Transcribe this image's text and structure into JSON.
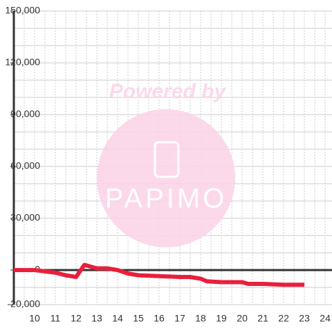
{
  "chart_data": {
    "type": "line",
    "watermark": {
      "top": "Powered by",
      "logo": "PAPIMO"
    },
    "x": [
      9,
      10,
      11,
      11.5,
      12,
      12.4,
      13,
      13.5,
      14,
      14.5,
      15,
      16,
      17,
      17.5,
      18,
      18.3,
      19,
      20,
      20.3,
      21,
      22,
      23
    ],
    "series": [
      {
        "color": "#e8203c",
        "values": [
          0,
          0,
          -1500,
          -3000,
          -4000,
          3000,
          1000,
          1000,
          0,
          -2000,
          -3000,
          -3500,
          -4000,
          -4000,
          -5000,
          -6500,
          -7000,
          -7000,
          -8000,
          -8000,
          -8500,
          -8500
        ]
      }
    ],
    "xlim": [
      9,
      24.33
    ],
    "xticks": [
      10,
      11,
      12,
      13,
      14,
      15,
      16,
      17,
      18,
      19,
      20,
      21,
      22,
      23,
      24
    ],
    "ylim": [
      -20000,
      150000
    ],
    "yticks": [
      {
        "value": -20000,
        "label": "-20,000"
      },
      {
        "value": 0,
        "label": "0"
      },
      {
        "value": 30000,
        "label": "30,000"
      },
      {
        "value": 60000,
        "label": "60,000"
      },
      {
        "value": 90000,
        "label": "90,000"
      },
      {
        "value": 120000,
        "label": "120,000"
      },
      {
        "value": 150000,
        "label": "150,000"
      }
    ],
    "grid": true
  }
}
